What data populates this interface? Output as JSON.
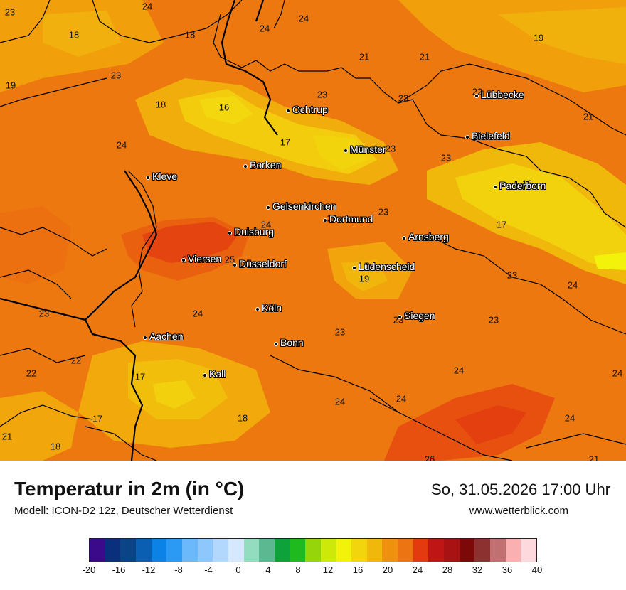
{
  "header": {
    "title": "Temperatur in 2m (in °C)",
    "model": "Modell: ICON-D2 12z, Deutscher Wetterdienst",
    "datetime": "So, 31.05.2026 17:00 Uhr",
    "website": "www.wetterblick.com"
  },
  "map": {
    "values": [
      {
        "text": "24",
        "c": 207
      },
      {
        "text": "23",
        "c": 14
      },
      {
        "text": "18",
        "c": 104
      },
      {
        "text": "18",
        "c": 267
      },
      {
        "text": "24",
        "c": 372
      },
      {
        "text": "24",
        "c": 427
      },
      {
        "text": "19",
        "c": 757
      },
      {
        "text": "23",
        "c": 163
      },
      {
        "text": "21",
        "c": 512
      },
      {
        "text": "21",
        "c": 597
      },
      {
        "text": "19",
        "c": 15
      },
      {
        "text": "23",
        "c": 453
      },
      {
        "text": "23",
        "c": 567
      },
      {
        "text": "22",
        "c": 671
      },
      {
        "text": "18",
        "c": 226
      },
      {
        "text": "16",
        "c": 315
      },
      {
        "text": "21",
        "c": 827
      },
      {
        "text": "17",
        "c": 401
      },
      {
        "text": "24",
        "c": 171
      },
      {
        "text": "23",
        "c": 549
      },
      {
        "text": "23",
        "c": 627
      },
      {
        "text": "16",
        "c": 741
      },
      {
        "text": "23",
        "c": 539
      },
      {
        "text": "20",
        "c": 467
      },
      {
        "text": "24",
        "c": 374
      },
      {
        "text": "17",
        "c": 705
      },
      {
        "text": "25",
        "c": 263
      },
      {
        "text": "25",
        "c": 323
      },
      {
        "text": "19",
        "c": 512
      },
      {
        "text": "23",
        "c": 720
      },
      {
        "text": "24",
        "c": 805
      },
      {
        "text": "23",
        "c": 62
      },
      {
        "text": "24",
        "c": 278
      },
      {
        "text": "23",
        "c": 560
      },
      {
        "text": "23",
        "c": 694
      },
      {
        "text": "23",
        "c": 478
      },
      {
        "text": "22",
        "c": 107
      },
      {
        "text": "22",
        "c": 44
      },
      {
        "text": "17",
        "c": 197
      },
      {
        "text": "24",
        "c": 645
      },
      {
        "text": "24",
        "c": 868
      },
      {
        "text": "24",
        "c": 478
      },
      {
        "text": "24",
        "c": 564
      },
      {
        "text": "17",
        "c": 137
      },
      {
        "text": "18",
        "c": 341
      },
      {
        "text": "24",
        "c": 801
      },
      {
        "text": "21",
        "c": 10
      },
      {
        "text": "18",
        "c": 78
      },
      {
        "text": "26",
        "c": 604
      },
      {
        "text": "21",
        "c": 835
      }
    ],
    "cities": [
      {
        "name": "Lübbecke"
      },
      {
        "name": "Ochtrup"
      },
      {
        "name": "Bielefeld"
      },
      {
        "name": "Münster"
      },
      {
        "name": "Borken"
      },
      {
        "name": "Kleve"
      },
      {
        "name": "Paderborn"
      },
      {
        "name": "Gelsenkirchen"
      },
      {
        "name": "Dortmund"
      },
      {
        "name": "Duisburg"
      },
      {
        "name": "Arnsberg"
      },
      {
        "name": "Viersen"
      },
      {
        "name": "Düsseldorf"
      },
      {
        "name": "Lüdenscheid"
      },
      {
        "name": "Köln"
      },
      {
        "name": "Siegen"
      },
      {
        "name": "Aachen"
      },
      {
        "name": "Bonn"
      },
      {
        "name": "Kall"
      }
    ]
  },
  "legend": {
    "colors": [
      "#3a0a8a",
      "#0a2f7c",
      "#0a4486",
      "#0a5fb2",
      "#0b83e6",
      "#2a9af5",
      "#6bb8fb",
      "#8ec7fb",
      "#b3d8fd",
      "#d5e8fd",
      "#93dcc0",
      "#5cb891",
      "#0ea23b",
      "#1eba1e",
      "#96d50a",
      "#cde90a",
      "#f2f20a",
      "#f3d50d",
      "#f1b80c",
      "#ef900f",
      "#ec7412",
      "#e43a0f",
      "#c01515",
      "#a81212",
      "#7d0808",
      "#8c3030",
      "#c07070",
      "#fab0b0",
      "#fdd8dc"
    ],
    "ticks": [
      "-20",
      "-16",
      "-12",
      "-8",
      "-4",
      "0",
      "4",
      "8",
      "12",
      "16",
      "20",
      "24",
      "28",
      "32",
      "36",
      "40"
    ]
  }
}
